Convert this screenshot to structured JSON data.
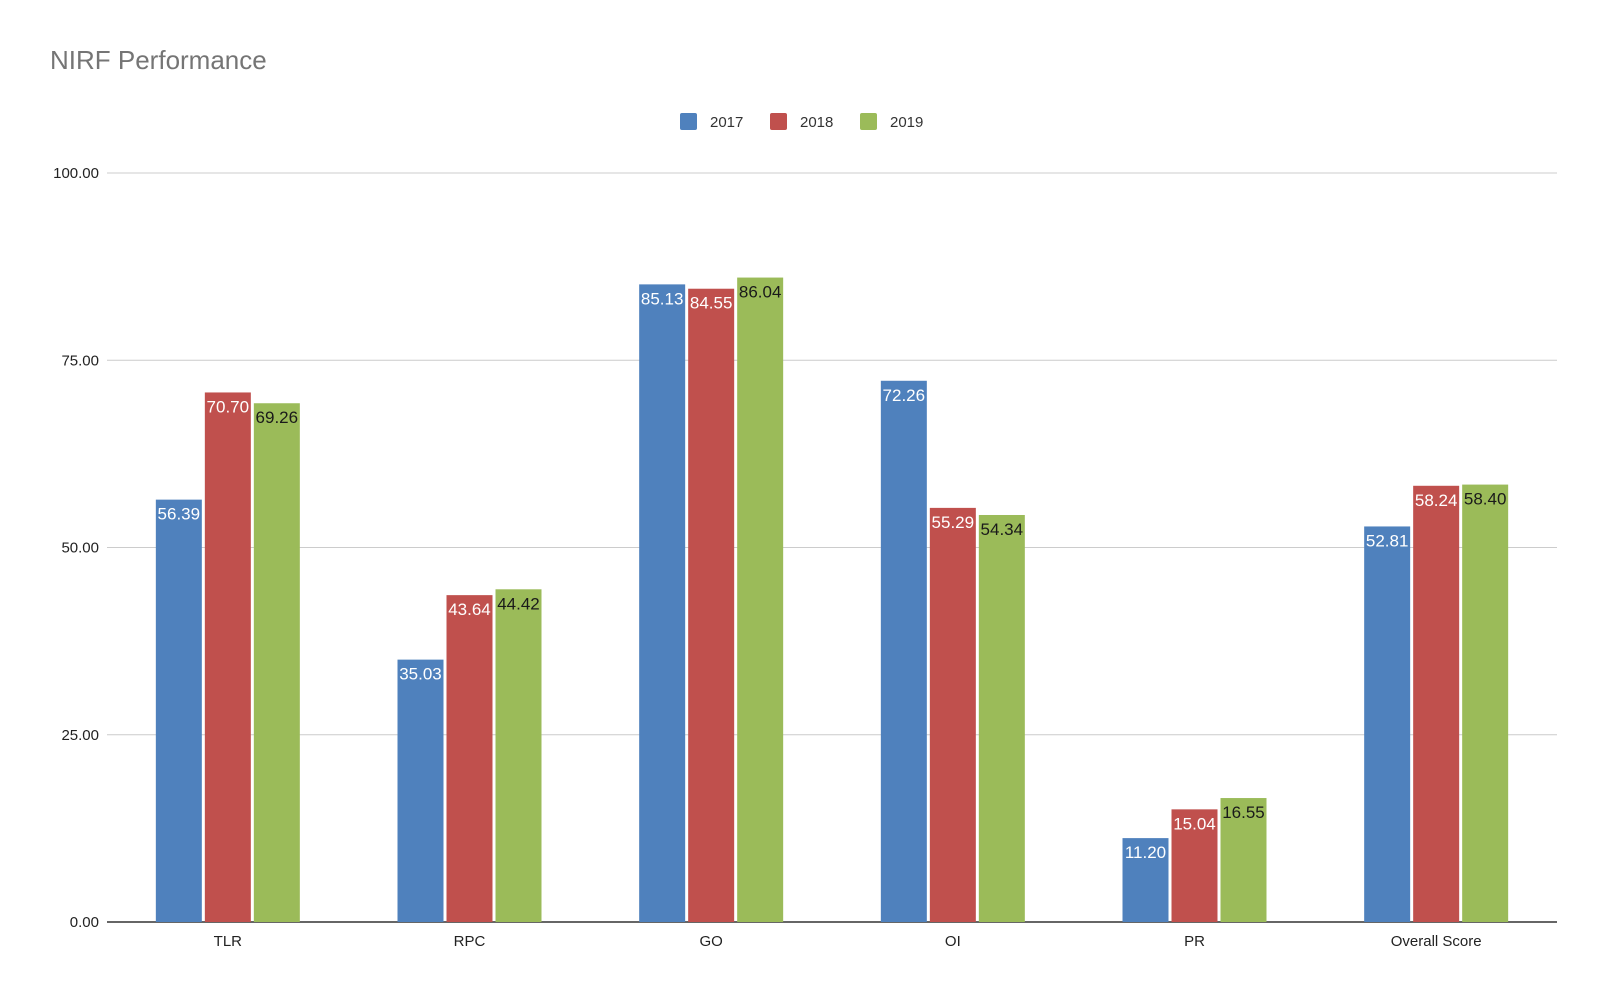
{
  "chart_data": {
    "type": "bar",
    "title": "NIRF Performance",
    "xlabel": "",
    "ylabel": "",
    "categories": [
      "TLR",
      "RPC",
      "GO",
      "OI",
      "PR",
      "Overall Score"
    ],
    "series": [
      {
        "name": "2017",
        "color": "#4f81bd",
        "label_color": "#ffffff",
        "values": [
          56.39,
          35.03,
          85.13,
          72.26,
          11.2,
          52.81
        ]
      },
      {
        "name": "2018",
        "color": "#c0504d",
        "label_color": "#ffffff",
        "values": [
          70.7,
          43.64,
          84.55,
          55.29,
          15.04,
          58.24
        ]
      },
      {
        "name": "2019",
        "color": "#9bbb59",
        "label_color": "#1a1a1a",
        "values": [
          69.26,
          44.42,
          86.04,
          54.34,
          16.55,
          58.4
        ]
      }
    ],
    "ylim": [
      0,
      100
    ],
    "yticks": [
      "0.00",
      "25.00",
      "50.00",
      "75.00",
      "100.00"
    ],
    "ytick_values": [
      0,
      25,
      50,
      75,
      100
    ],
    "grid": true,
    "legend_position": "top-center"
  }
}
